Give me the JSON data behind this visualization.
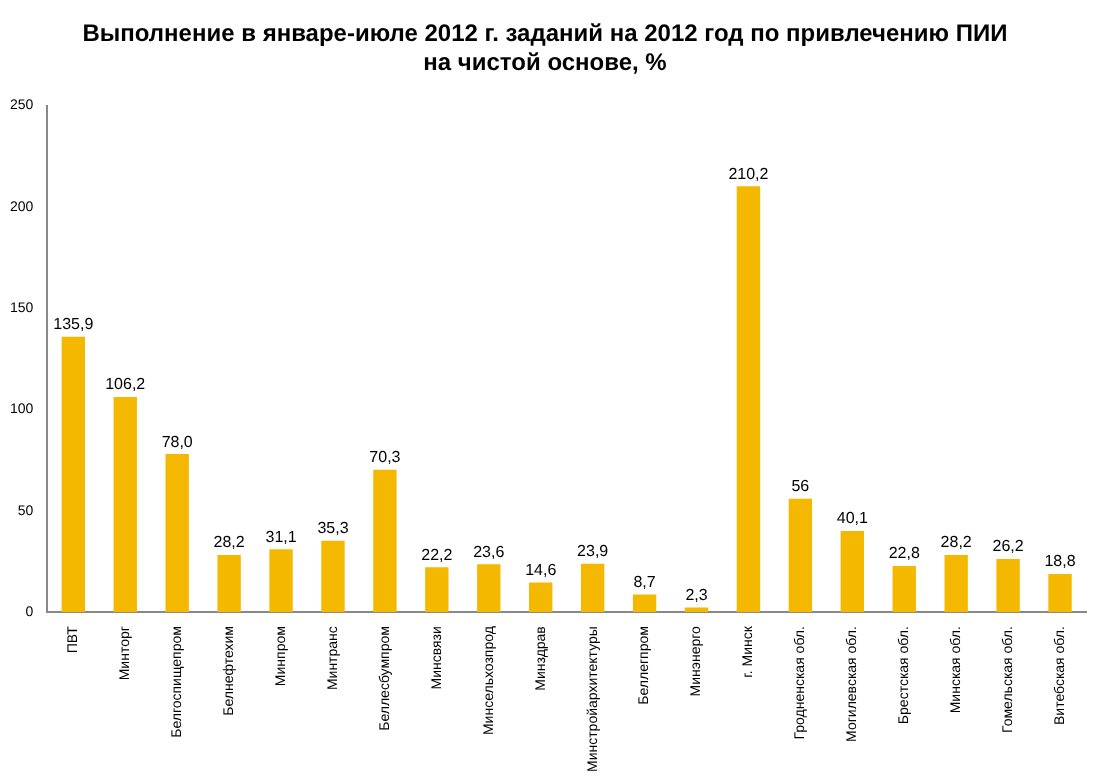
{
  "chart_data": {
    "type": "bar",
    "title": "Выполнение в январе-июле 2012 г. заданий на 2012 год по привлечению ПИИ\nна чистой основе, %",
    "categories": [
      "ПВТ",
      "Минторг",
      "Белгоспищепром",
      "Белнефтехим",
      "Минпром",
      "Минтранс",
      "Беллесбумпром",
      "Минсвязи",
      "Минсельхозпрод",
      "Минздрав",
      "Минстройархитектуры",
      "Беллегпром",
      "Минэнерго",
      "г. Минск",
      "Гродненская обл.",
      "Могилевская обл.",
      "Брестская обл.",
      "Минская обл.",
      "Гомельская обл.",
      "Витебская обл."
    ],
    "values": [
      135.9,
      106.2,
      78.0,
      28.2,
      31.1,
      35.3,
      70.3,
      22.2,
      23.6,
      14.6,
      23.9,
      8.7,
      2.3,
      210.2,
      56,
      40.1,
      22.8,
      28.2,
      26.2,
      18.8
    ],
    "value_labels": [
      "135,9",
      "106,2",
      "78,0",
      "28,2",
      "31,1",
      "35,3",
      "70,3",
      "22,2",
      "23,6",
      "14,6",
      "23,9",
      "8,7",
      "2,3",
      "210,2",
      "56",
      "40,1",
      "22,8",
      "28,2",
      "26,2",
      "18,8"
    ],
    "color": "#f5b800",
    "ylim": [
      0,
      250
    ],
    "yticks": [
      0,
      50,
      100,
      150,
      200,
      250
    ],
    "grid": false,
    "legend": false
  }
}
